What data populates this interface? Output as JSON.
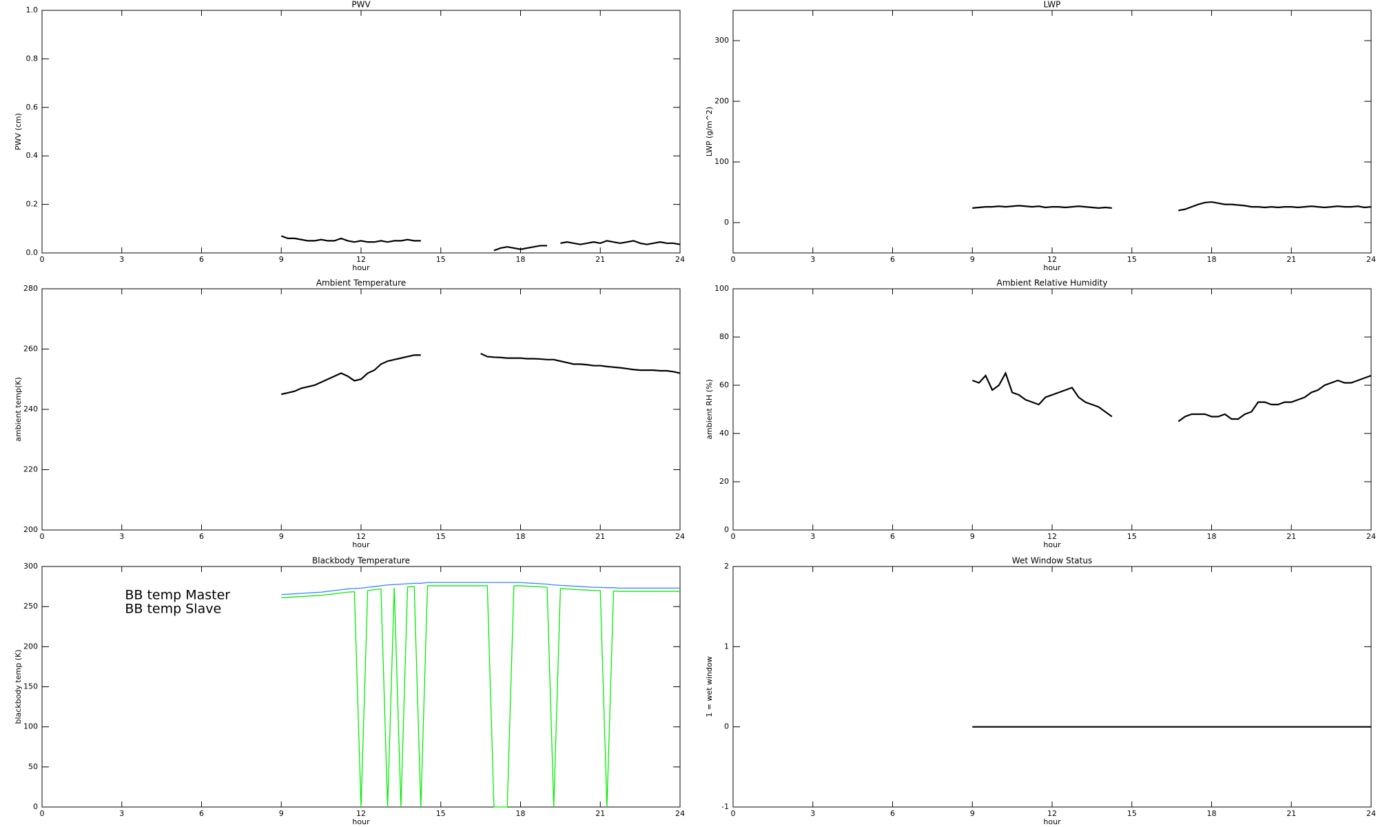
{
  "chart_data": [
    {
      "type": "line",
      "title": "PWV",
      "xlabel": "hour",
      "ylabel": "PWV (cm)",
      "xlim": [
        0,
        24
      ],
      "xticks": [
        0,
        3,
        6,
        9,
        12,
        15,
        18,
        21,
        24
      ],
      "ylim": [
        0,
        1
      ],
      "yticks": [
        {
          "value": 0,
          "label": "0.0"
        },
        {
          "value": 0.2,
          "label": "0.2"
        },
        {
          "value": 0.4,
          "label": "0.4"
        },
        {
          "value": 0.6,
          "label": "0.6"
        },
        {
          "value": 0.8,
          "label": "0.8"
        },
        {
          "value": 1,
          "label": "1.0"
        }
      ],
      "x": [
        9,
        9.25,
        9.5,
        9.75,
        10,
        10.25,
        10.5,
        10.75,
        11,
        11.25,
        11.5,
        11.75,
        12,
        12.25,
        12.5,
        12.75,
        13,
        13.25,
        13.5,
        13.75,
        14,
        14.25,
        14.5,
        14.75,
        15,
        15.25,
        15.5,
        15.75,
        16,
        16.25,
        16.5,
        16.75,
        17,
        17.25,
        17.5,
        17.75,
        18,
        18.25,
        18.5,
        18.75,
        19,
        19.25,
        19.5,
        19.75,
        20,
        20.25,
        20.5,
        20.75,
        21,
        21.25,
        21.5,
        21.75,
        22,
        22.25,
        22.5,
        22.75,
        23,
        23.25,
        23.5,
        23.75,
        24
      ],
      "series": [
        {
          "color": "#000000",
          "values": [
            0.07,
            0.06,
            0.06,
            0.055,
            0.05,
            0.05,
            0.055,
            0.05,
            0.05,
            0.06,
            0.05,
            0.045,
            0.05,
            0.045,
            0.045,
            0.05,
            0.045,
            0.05,
            0.05,
            0.055,
            0.05,
            0.05,
            null,
            null,
            null,
            null,
            null,
            null,
            null,
            null,
            null,
            null,
            0.01,
            0.02,
            0.025,
            0.02,
            0.015,
            0.02,
            0.025,
            0.03,
            0.03,
            null,
            0.04,
            0.045,
            0.04,
            0.035,
            0.04,
            0.045,
            0.04,
            0.05,
            0.045,
            0.04,
            0.045,
            0.05,
            0.04,
            0.035,
            0.04,
            0.045,
            0.04,
            0.04,
            0.035
          ]
        }
      ]
    },
    {
      "type": "line",
      "title": "LWP",
      "xlabel": "hour",
      "ylabel": "LWP (g/m^2)",
      "xlim": [
        0,
        24
      ],
      "xticks": [
        0,
        3,
        6,
        9,
        12,
        15,
        18,
        21,
        24
      ],
      "ylim": [
        -50,
        350
      ],
      "yticks": [
        0,
        100,
        200,
        300
      ],
      "x": [
        9,
        9.25,
        9.5,
        9.75,
        10,
        10.25,
        10.5,
        10.75,
        11,
        11.25,
        11.5,
        11.75,
        12,
        12.25,
        12.5,
        12.75,
        13,
        13.25,
        13.5,
        13.75,
        14,
        14.25,
        14.5,
        14.75,
        15,
        15.25,
        15.5,
        15.75,
        16,
        16.25,
        16.5,
        16.75,
        17,
        17.25,
        17.5,
        17.75,
        18,
        18.25,
        18.5,
        18.75,
        19,
        19.25,
        19.5,
        19.75,
        20,
        20.25,
        20.5,
        20.75,
        21,
        21.25,
        21.5,
        21.75,
        22,
        22.25,
        22.5,
        22.75,
        23,
        23.25,
        23.5,
        23.75,
        24
      ],
      "series": [
        {
          "color": "#000000",
          "values": [
            24,
            25,
            26,
            26,
            27,
            26,
            27,
            28,
            27,
            26,
            27,
            25,
            26,
            26,
            25,
            26,
            27,
            26,
            25,
            24,
            25,
            24,
            null,
            null,
            null,
            null,
            null,
            null,
            null,
            null,
            null,
            20,
            22,
            26,
            30,
            33,
            34,
            32,
            30,
            30,
            29,
            28,
            26,
            26,
            25,
            26,
            25,
            26,
            26,
            25,
            26,
            27,
            26,
            25,
            26,
            27,
            26,
            26,
            27,
            25,
            26
          ]
        }
      ]
    },
    {
      "type": "line",
      "title": "Ambient Temperature",
      "xlabel": "hour",
      "ylabel": "ambient temp(K)",
      "xlim": [
        0,
        24
      ],
      "xticks": [
        0,
        3,
        6,
        9,
        12,
        15,
        18,
        21,
        24
      ],
      "ylim": [
        200,
        280
      ],
      "yticks": [
        200,
        220,
        240,
        260,
        280
      ],
      "x": [
        9,
        9.25,
        9.5,
        9.75,
        10,
        10.25,
        10.5,
        10.75,
        11,
        11.25,
        11.5,
        11.75,
        12,
        12.25,
        12.5,
        12.75,
        13,
        13.25,
        13.5,
        13.75,
        14,
        14.25,
        14.5,
        14.75,
        15,
        15.25,
        15.5,
        15.75,
        16,
        16.25,
        16.5,
        16.75,
        17,
        17.25,
        17.5,
        17.75,
        18,
        18.25,
        18.5,
        18.75,
        19,
        19.25,
        19.5,
        19.75,
        20,
        20.25,
        20.5,
        20.75,
        21,
        21.25,
        21.5,
        21.75,
        22,
        22.25,
        22.5,
        22.75,
        23,
        23.25,
        23.5,
        23.75,
        24
      ],
      "series": [
        {
          "color": "#000000",
          "values": [
            245,
            245.5,
            246,
            247,
            247.5,
            248,
            249,
            250,
            251,
            252,
            251,
            249.5,
            250,
            252,
            253,
            255,
            256,
            256.5,
            257,
            257.5,
            258,
            258,
            null,
            null,
            null,
            null,
            null,
            null,
            null,
            null,
            258.5,
            257.5,
            257.3,
            257.2,
            257,
            257,
            257,
            256.8,
            256.8,
            256.7,
            256.5,
            256.5,
            256,
            255.5,
            255,
            255,
            254.8,
            254.5,
            254.5,
            254.2,
            254,
            253.8,
            253.5,
            253.2,
            253,
            253,
            253,
            252.8,
            252.8,
            252.5,
            252
          ]
        }
      ]
    },
    {
      "type": "line",
      "title": "Ambient Relative Humidity",
      "xlabel": "hour",
      "ylabel": "ambient RH (%)",
      "xlim": [
        0,
        24
      ],
      "xticks": [
        0,
        3,
        6,
        9,
        12,
        15,
        18,
        21,
        24
      ],
      "ylim": [
        0,
        100
      ],
      "yticks": [
        0,
        20,
        40,
        60,
        80,
        100
      ],
      "x": [
        9,
        9.25,
        9.5,
        9.75,
        10,
        10.25,
        10.5,
        10.75,
        11,
        11.25,
        11.5,
        11.75,
        12,
        12.25,
        12.5,
        12.75,
        13,
        13.25,
        13.5,
        13.75,
        14,
        14.25,
        14.5,
        14.75,
        15,
        15.25,
        15.5,
        15.75,
        16,
        16.25,
        16.5,
        16.75,
        17,
        17.25,
        17.5,
        17.75,
        18,
        18.25,
        18.5,
        18.75,
        19,
        19.25,
        19.5,
        19.75,
        20,
        20.25,
        20.5,
        20.75,
        21,
        21.25,
        21.5,
        21.75,
        22,
        22.25,
        22.5,
        22.75,
        23,
        23.25,
        23.5,
        23.75,
        24
      ],
      "series": [
        {
          "color": "#000000",
          "values": [
            62,
            61,
            64,
            58,
            60,
            65,
            57,
            56,
            54,
            53,
            52,
            55,
            56,
            57,
            58,
            59,
            55,
            53,
            52,
            51,
            49,
            47,
            null,
            null,
            null,
            null,
            null,
            null,
            null,
            null,
            null,
            45,
            47,
            48,
            48,
            48,
            47,
            47,
            48,
            46,
            46,
            48,
            49,
            53,
            53,
            52,
            52,
            53,
            53,
            54,
            55,
            57,
            58,
            60,
            61,
            62,
            61,
            61,
            62,
            63,
            64
          ]
        }
      ]
    },
    {
      "type": "line",
      "title": "Blackbody Temperature",
      "xlabel": "hour",
      "ylabel": "blackbody temp (K)",
      "xlim": [
        0,
        24
      ],
      "xticks": [
        0,
        3,
        6,
        9,
        12,
        15,
        18,
        21,
        24
      ],
      "ylim": [
        0,
        300
      ],
      "yticks": [
        0,
        50,
        100,
        150,
        200,
        250,
        300
      ],
      "legend": "upper left",
      "x": [
        9,
        9.25,
        9.5,
        9.75,
        10,
        10.25,
        10.5,
        10.75,
        11,
        11.25,
        11.5,
        11.75,
        12,
        12.25,
        12.5,
        12.75,
        13,
        13.25,
        13.5,
        13.75,
        14,
        14.25,
        14.5,
        14.75,
        15,
        15.25,
        15.5,
        15.75,
        16,
        16.25,
        16.5,
        16.75,
        17,
        17.25,
        17.5,
        17.75,
        18,
        18.25,
        18.5,
        18.75,
        19,
        19.25,
        19.5,
        19.75,
        20,
        20.25,
        20.5,
        20.75,
        21,
        21.25,
        21.5,
        21.75,
        22,
        22.25,
        22.5,
        22.75,
        23,
        23.25,
        23.5,
        23.75,
        24
      ],
      "series": [
        {
          "name": "BB temp Master",
          "color": "#3f7fff",
          "values": [
            265,
            265.5,
            266,
            266.5,
            267,
            267.5,
            268,
            269,
            270,
            271,
            272,
            272.5,
            273,
            274,
            275,
            276,
            277,
            277.5,
            278,
            278.5,
            279,
            279,
            280,
            280,
            280,
            280,
            280,
            280,
            280,
            280,
            280,
            280,
            280,
            280,
            280,
            280,
            280,
            279.5,
            279,
            278.5,
            278,
            277,
            276.5,
            276,
            275.5,
            275,
            274.5,
            274,
            274,
            273.5,
            273.5,
            273,
            273,
            273,
            273,
            273,
            273,
            273,
            273,
            273,
            273
          ]
        },
        {
          "name": "BB temp Slave",
          "color": "#00ee00",
          "values": [
            261,
            261.5,
            262,
            262.5,
            263,
            263.5,
            264,
            265,
            266,
            267,
            268,
            268.5,
            0,
            270,
            271,
            272,
            0,
            273.5,
            0,
            274.5,
            275,
            0,
            276,
            276,
            276,
            276,
            276,
            276,
            276,
            276,
            276,
            276,
            0,
            0,
            0,
            276,
            276,
            275.5,
            275,
            274.5,
            274,
            0,
            272.5,
            272,
            271.5,
            271,
            270.5,
            270,
            270,
            0,
            269.5,
            269,
            269,
            269,
            269,
            269,
            269,
            269,
            269,
            269,
            269
          ]
        }
      ]
    },
    {
      "type": "line",
      "title": "Wet Window Status",
      "xlabel": "hour",
      "ylabel": "1 = wet window",
      "xlim": [
        0,
        24
      ],
      "xticks": [
        0,
        3,
        6,
        9,
        12,
        15,
        18,
        21,
        24
      ],
      "ylim": [
        -1,
        2
      ],
      "yticks": [
        -1,
        0,
        1,
        2
      ],
      "x": [
        9,
        9.25,
        9.5,
        9.75,
        10,
        10.25,
        10.5,
        10.75,
        11,
        11.25,
        11.5,
        11.75,
        12,
        12.25,
        12.5,
        12.75,
        13,
        13.25,
        13.5,
        13.75,
        14,
        14.25,
        14.5,
        14.75,
        15,
        15.25,
        15.5,
        15.75,
        16,
        16.25,
        16.5,
        16.75,
        17,
        17.25,
        17.5,
        17.75,
        18,
        18.25,
        18.5,
        18.75,
        19,
        19.25,
        19.5,
        19.75,
        20,
        20.25,
        20.5,
        20.75,
        21,
        21.25,
        21.5,
        21.75,
        22,
        22.25,
        22.5,
        22.75,
        23,
        23.25,
        23.5,
        23.75,
        24
      ],
      "series": [
        {
          "color": "#000000",
          "values": [
            0,
            0,
            0,
            0,
            0,
            0,
            0,
            0,
            0,
            0,
            0,
            0,
            0,
            0,
            0,
            0,
            0,
            0,
            0,
            0,
            0,
            0,
            0,
            0,
            0,
            0,
            0,
            0,
            0,
            0,
            0,
            0,
            0,
            0,
            0,
            0,
            0,
            0,
            0,
            0,
            0,
            0,
            0,
            0,
            0,
            0,
            0,
            0,
            0,
            0,
            0,
            0,
            0,
            0,
            0,
            0,
            0,
            0,
            0,
            0,
            0
          ]
        }
      ]
    }
  ]
}
